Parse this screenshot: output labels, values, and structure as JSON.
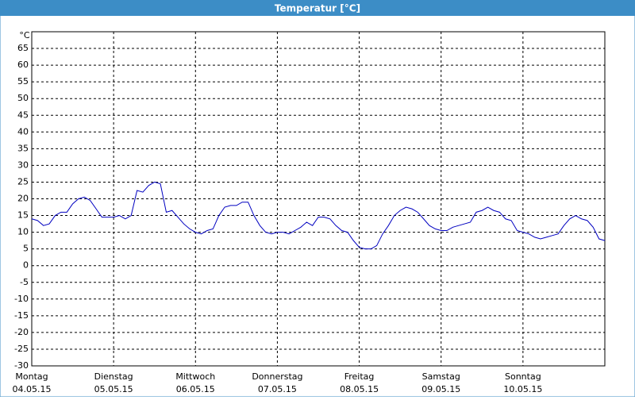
{
  "chart_data": {
    "type": "line",
    "title": "Temperatur [°C]",
    "ylabel": "°C",
    "xlim": [
      0,
      7
    ],
    "ylim": [
      -30,
      70
    ],
    "yticks": [
      -30,
      -25,
      -20,
      -15,
      -10,
      -5,
      0,
      5,
      10,
      15,
      20,
      25,
      30,
      35,
      40,
      45,
      50,
      55,
      60,
      65
    ],
    "xticks": [
      {
        "value": 0,
        "label": "Montag",
        "date": "04.05.15"
      },
      {
        "value": 1,
        "label": "Dienstag",
        "date": "05.05.15"
      },
      {
        "value": 2,
        "label": "Mittwoch",
        "date": "06.05.15"
      },
      {
        "value": 3,
        "label": "Donnerstag",
        "date": "07.05.15"
      },
      {
        "value": 4,
        "label": "Freitag",
        "date": "08.05.15"
      },
      {
        "value": 5,
        "label": "Samstag",
        "date": "09.05.15"
      },
      {
        "value": 6,
        "label": "Sonntag",
        "date": "10.05.15"
      }
    ],
    "grid": true,
    "x": [
      0,
      0.071,
      0.143,
      0.214,
      0.286,
      0.357,
      0.429,
      0.5,
      0.571,
      0.643,
      0.714,
      0.786,
      0.857,
      0.929,
      1,
      1.071,
      1.143,
      1.214,
      1.286,
      1.357,
      1.429,
      1.5,
      1.571,
      1.643,
      1.714,
      1.786,
      1.857,
      1.929,
      2,
      2.071,
      2.143,
      2.214,
      2.286,
      2.357,
      2.429,
      2.5,
      2.571,
      2.643,
      2.714,
      2.786,
      2.857,
      2.929,
      3,
      3.071,
      3.143,
      3.214,
      3.286,
      3.357,
      3.429,
      3.5,
      3.571,
      3.643,
      3.714,
      3.786,
      3.857,
      3.929,
      4,
      4.071,
      4.143,
      4.214,
      4.286,
      4.357,
      4.429,
      4.5,
      4.571,
      4.643,
      4.714,
      4.786,
      4.857,
      4.929,
      5,
      5.071,
      5.143,
      5.214,
      5.286,
      5.357,
      5.429,
      5.5,
      5.571,
      5.643,
      5.714,
      5.786,
      5.857,
      5.929,
      6,
      6.071,
      6.143,
      6.214,
      6.286,
      6.357,
      6.429,
      6.5,
      6.571,
      6.643,
      6.714,
      6.786,
      6.857,
      6.929,
      7
    ],
    "series": [
      {
        "color": "#0000c0",
        "values": [
          14,
          13.5,
          12,
          12.5,
          15,
          16,
          16,
          18.5,
          20,
          20.5,
          19.5,
          17,
          14.5,
          14.5,
          14.5,
          15,
          14,
          15,
          22.5,
          22,
          24,
          25,
          24.5,
          16,
          16.5,
          14.5,
          12.5,
          11,
          10,
          9.5,
          10.5,
          11,
          15,
          17.5,
          18,
          18,
          19,
          19,
          15,
          12,
          10,
          9.5,
          10,
          10,
          9.5,
          10.5,
          11.5,
          13,
          12,
          14.5,
          14.5,
          14,
          12,
          10.5,
          10,
          7.5,
          5.5,
          5,
          5,
          6,
          9.5,
          12,
          15,
          16.5,
          17.5,
          17,
          16,
          14,
          12,
          11,
          10.5,
          10.5,
          11.5,
          12,
          12.5,
          13,
          16,
          16.5,
          17.5,
          16.5,
          16,
          14,
          13.5,
          10.5,
          10,
          9.5,
          8.5,
          8,
          8.5,
          9,
          9.5,
          12,
          14,
          15,
          14,
          13.5,
          11.5,
          8,
          7.5
        ]
      }
    ]
  }
}
